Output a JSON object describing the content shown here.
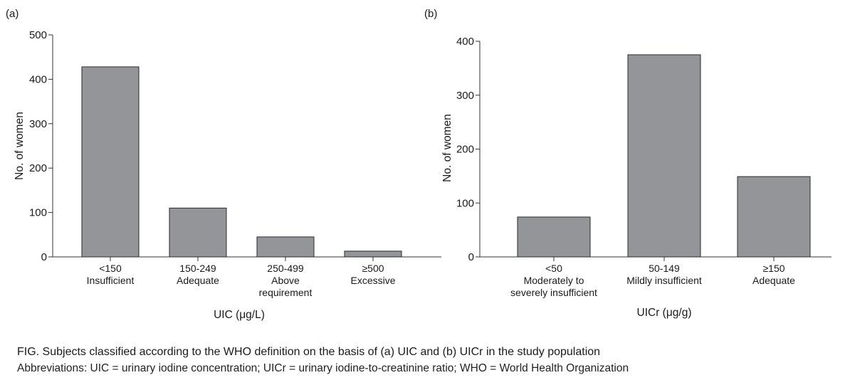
{
  "chart_data": [
    {
      "panel_label": "(a)",
      "type": "bar",
      "categories": [
        [
          "<150",
          "Insufficient"
        ],
        [
          "150-249",
          "Adequate"
        ],
        [
          "250-499",
          "Above",
          "requirement"
        ],
        [
          "≥500",
          "Excessive"
        ]
      ],
      "values": [
        428,
        110,
        45,
        13
      ],
      "xlabel": "UIC (μg/L)",
      "ylabel": "No. of women",
      "ylim": [
        0,
        500
      ],
      "yticks": [
        0,
        100,
        200,
        300,
        400,
        500
      ],
      "grid": false,
      "bar_color": "#939598"
    },
    {
      "panel_label": "(b)",
      "type": "bar",
      "categories": [
        [
          "<50",
          "Moderately to",
          "severely insufficient"
        ],
        [
          "50-149",
          "Mildly insufficient"
        ],
        [
          "≥150",
          "Adequate"
        ]
      ],
      "values": [
        74,
        375,
        149
      ],
      "xlabel": "UICr (μg/g)",
      "ylabel": "No. of women",
      "ylim": [
        0,
        400
      ],
      "yticks": [
        0,
        100,
        200,
        300,
        400
      ],
      "grid": false,
      "bar_color": "#939598"
    }
  ],
  "caption": {
    "title": "FIG. Subjects classified according to the WHO definition on the basis of (a) UIC and (b) UICr in the study population",
    "abbreviations": "Abbreviations: UIC = urinary iodine concentration; UICr = urinary iodine-to-creatinine ratio; WHO = World Health Organization"
  }
}
